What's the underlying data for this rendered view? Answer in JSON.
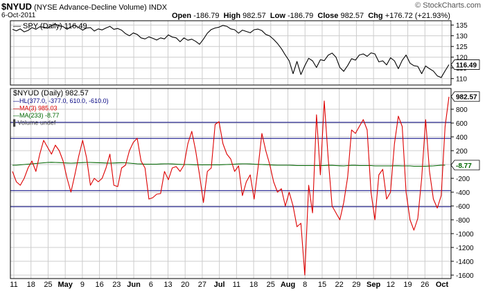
{
  "header": {
    "symbol": "$NYUD",
    "full_name": "(NYSE Advance-Decline Volume)",
    "exchange": "INDX",
    "date": "6-Oct-2011",
    "open_label": "Open",
    "open": "-186.79",
    "high_label": "High",
    "high": "982.57",
    "low_label": "Low",
    "low": "-186.79",
    "close_label": "Close",
    "close": "982.57",
    "chg_label": "Chg",
    "chg": "+176.72 (+21.93%)",
    "logo": "© StockCharts.com"
  },
  "chart_data": [
    {
      "type": "line",
      "title": "SPY (Daily) 116.49",
      "legend": "top-left",
      "grid": true,
      "ylim": [
        107,
        137
      ],
      "yticks": [
        110,
        115,
        120,
        125,
        130,
        135
      ],
      "last_value_label": "116.49",
      "series": [
        {
          "name": "SPY (Daily)",
          "color": "#000000",
          "values": [
            133.0,
            132.3,
            133.2,
            131.8,
            132.5,
            133.8,
            133.0,
            134.2,
            134.0,
            133.5,
            134.8,
            135.5,
            134.6,
            134.3,
            133.0,
            134.2,
            135.0,
            133.8,
            132.6,
            133.6,
            133.8,
            132.2,
            133.2,
            132.7,
            133.6,
            134.4,
            133.0,
            133.4,
            132.6,
            131.0,
            130.0,
            131.3,
            130.6,
            129.0,
            128.5,
            129.5,
            128.8,
            128.0,
            129.0,
            128.5,
            130.4,
            129.4,
            129.0,
            127.2,
            129.0,
            127.9,
            128.4,
            127.4,
            126.0,
            128.4,
            131.2,
            132.9,
            133.6,
            134.0,
            134.8,
            134.4,
            133.2,
            132.8,
            131.2,
            132.6,
            132.0,
            131.4,
            132.8,
            133.1,
            132.4,
            130.6,
            129.9,
            128.3,
            126.4,
            124.0,
            121.0,
            118.3,
            112.3,
            118.0,
            111.9,
            116.0,
            119.5,
            118.3,
            115.2,
            118.8,
            118.4,
            120.9,
            121.9,
            120.0,
            115.2,
            113.4,
            116.1,
            119.3,
            118.6,
            121.0,
            121.5,
            120.4,
            122.0,
            121.5,
            117.8,
            118.3,
            116.4,
            119.7,
            118.3,
            114.6,
            118.5,
            121.0,
            117.2,
            116.0,
            115.7,
            112.3,
            115.9,
            114.6,
            113.5,
            111.3,
            110.5,
            113.6,
            116.5
          ]
        }
      ]
    },
    {
      "type": "line",
      "title": "$NYUD (Daily) 982.57",
      "legend": "top-left",
      "grid": true,
      "ylim": [
        -1650,
        1100
      ],
      "yticks": [
        -1600,
        -1400,
        -1200,
        -1000,
        -800,
        -600,
        -400,
        -200,
        0,
        200,
        400,
        600,
        800
      ],
      "last_value_label": "982.57",
      "ma233_label": "-8.77",
      "legend_entries": [
        "HL(377.0, -377.0, 610.0, -610.0)",
        "MA(3) 985.03",
        "MA(233) -8.77",
        "Volume undef"
      ],
      "hlines": [
        377,
        -377,
        610,
        -610
      ],
      "series": [
        {
          "name": "MA(3)",
          "color": "#dd0000",
          "values": [
            -100,
            -250,
            -300,
            -200,
            -50,
            50,
            -100,
            150,
            350,
            250,
            150,
            280,
            200,
            50,
            -200,
            -400,
            -150,
            120,
            350,
            100,
            -300,
            -200,
            -250,
            -200,
            -50,
            150,
            -300,
            -320,
            -50,
            -10,
            200,
            320,
            380,
            50,
            -50,
            -500,
            -480,
            -430,
            -420,
            -100,
            -220,
            -50,
            -30,
            -100,
            -10,
            300,
            480,
            200,
            -150,
            -550,
            -100,
            -50,
            580,
            620,
            300,
            150,
            80,
            -100,
            -20,
            -450,
            -250,
            -150,
            -500,
            -50,
            450,
            200,
            0,
            -250,
            -400,
            -350,
            -600,
            -400,
            -600,
            -900,
            -850,
            -1600,
            -300,
            -700,
            720,
            -150,
            920,
            100,
            -600,
            -700,
            -800,
            -550,
            -180,
            500,
            450,
            550,
            650,
            500,
            -400,
            -800,
            -150,
            -70,
            -500,
            -400,
            300,
            700,
            550,
            -400,
            -800,
            -950,
            -780,
            -200,
            650,
            -100,
            -500,
            -630,
            -450,
            550,
            980
          ]
        },
        {
          "name": "MA(233)",
          "color": "#006600",
          "values": [
            -10,
            -10,
            -5,
            0,
            5,
            10,
            15,
            20,
            25,
            30,
            32,
            30,
            28,
            25,
            22,
            20,
            22,
            25,
            28,
            30,
            30,
            28,
            26,
            24,
            22,
            20,
            22,
            24,
            26,
            25,
            20,
            15,
            10,
            8,
            5,
            5,
            5,
            5,
            8,
            10,
            10,
            8,
            5,
            2,
            0,
            0,
            -2,
            -5,
            -5,
            -5,
            -5,
            -5,
            -5,
            -5,
            -2,
            0,
            2,
            5,
            8,
            10,
            10,
            8,
            5,
            2,
            0,
            -2,
            -5,
            -8,
            -10,
            -10,
            -10,
            -10,
            -12,
            -15,
            -15,
            -15,
            -15,
            -15,
            -15,
            -15,
            -15,
            -12,
            -12,
            -15,
            -18,
            -20,
            -15,
            -12,
            -12,
            -15,
            -15,
            -15,
            -15,
            -20,
            -20,
            -20,
            -20,
            -20,
            -18,
            -18,
            -20,
            -20,
            -20,
            -25,
            -25,
            -25,
            -25,
            -22,
            -20,
            -15,
            -10,
            -9
          ]
        }
      ],
      "x_ticks": [
        "11",
        "18",
        "25",
        "May",
        "9",
        "16",
        "23",
        "Jun",
        "6",
        "13",
        "20",
        "27",
        "Jul",
        "11",
        "18",
        "25",
        "Aug",
        "8",
        "15",
        "22",
        "29",
        "Sep",
        "12",
        "19",
        "26",
        "Oct"
      ]
    }
  ],
  "colors": {
    "band_line": "#000080",
    "grid": "#cccccc",
    "price": "#000000",
    "ma3": "#dd0000",
    "ma233": "#006600"
  }
}
